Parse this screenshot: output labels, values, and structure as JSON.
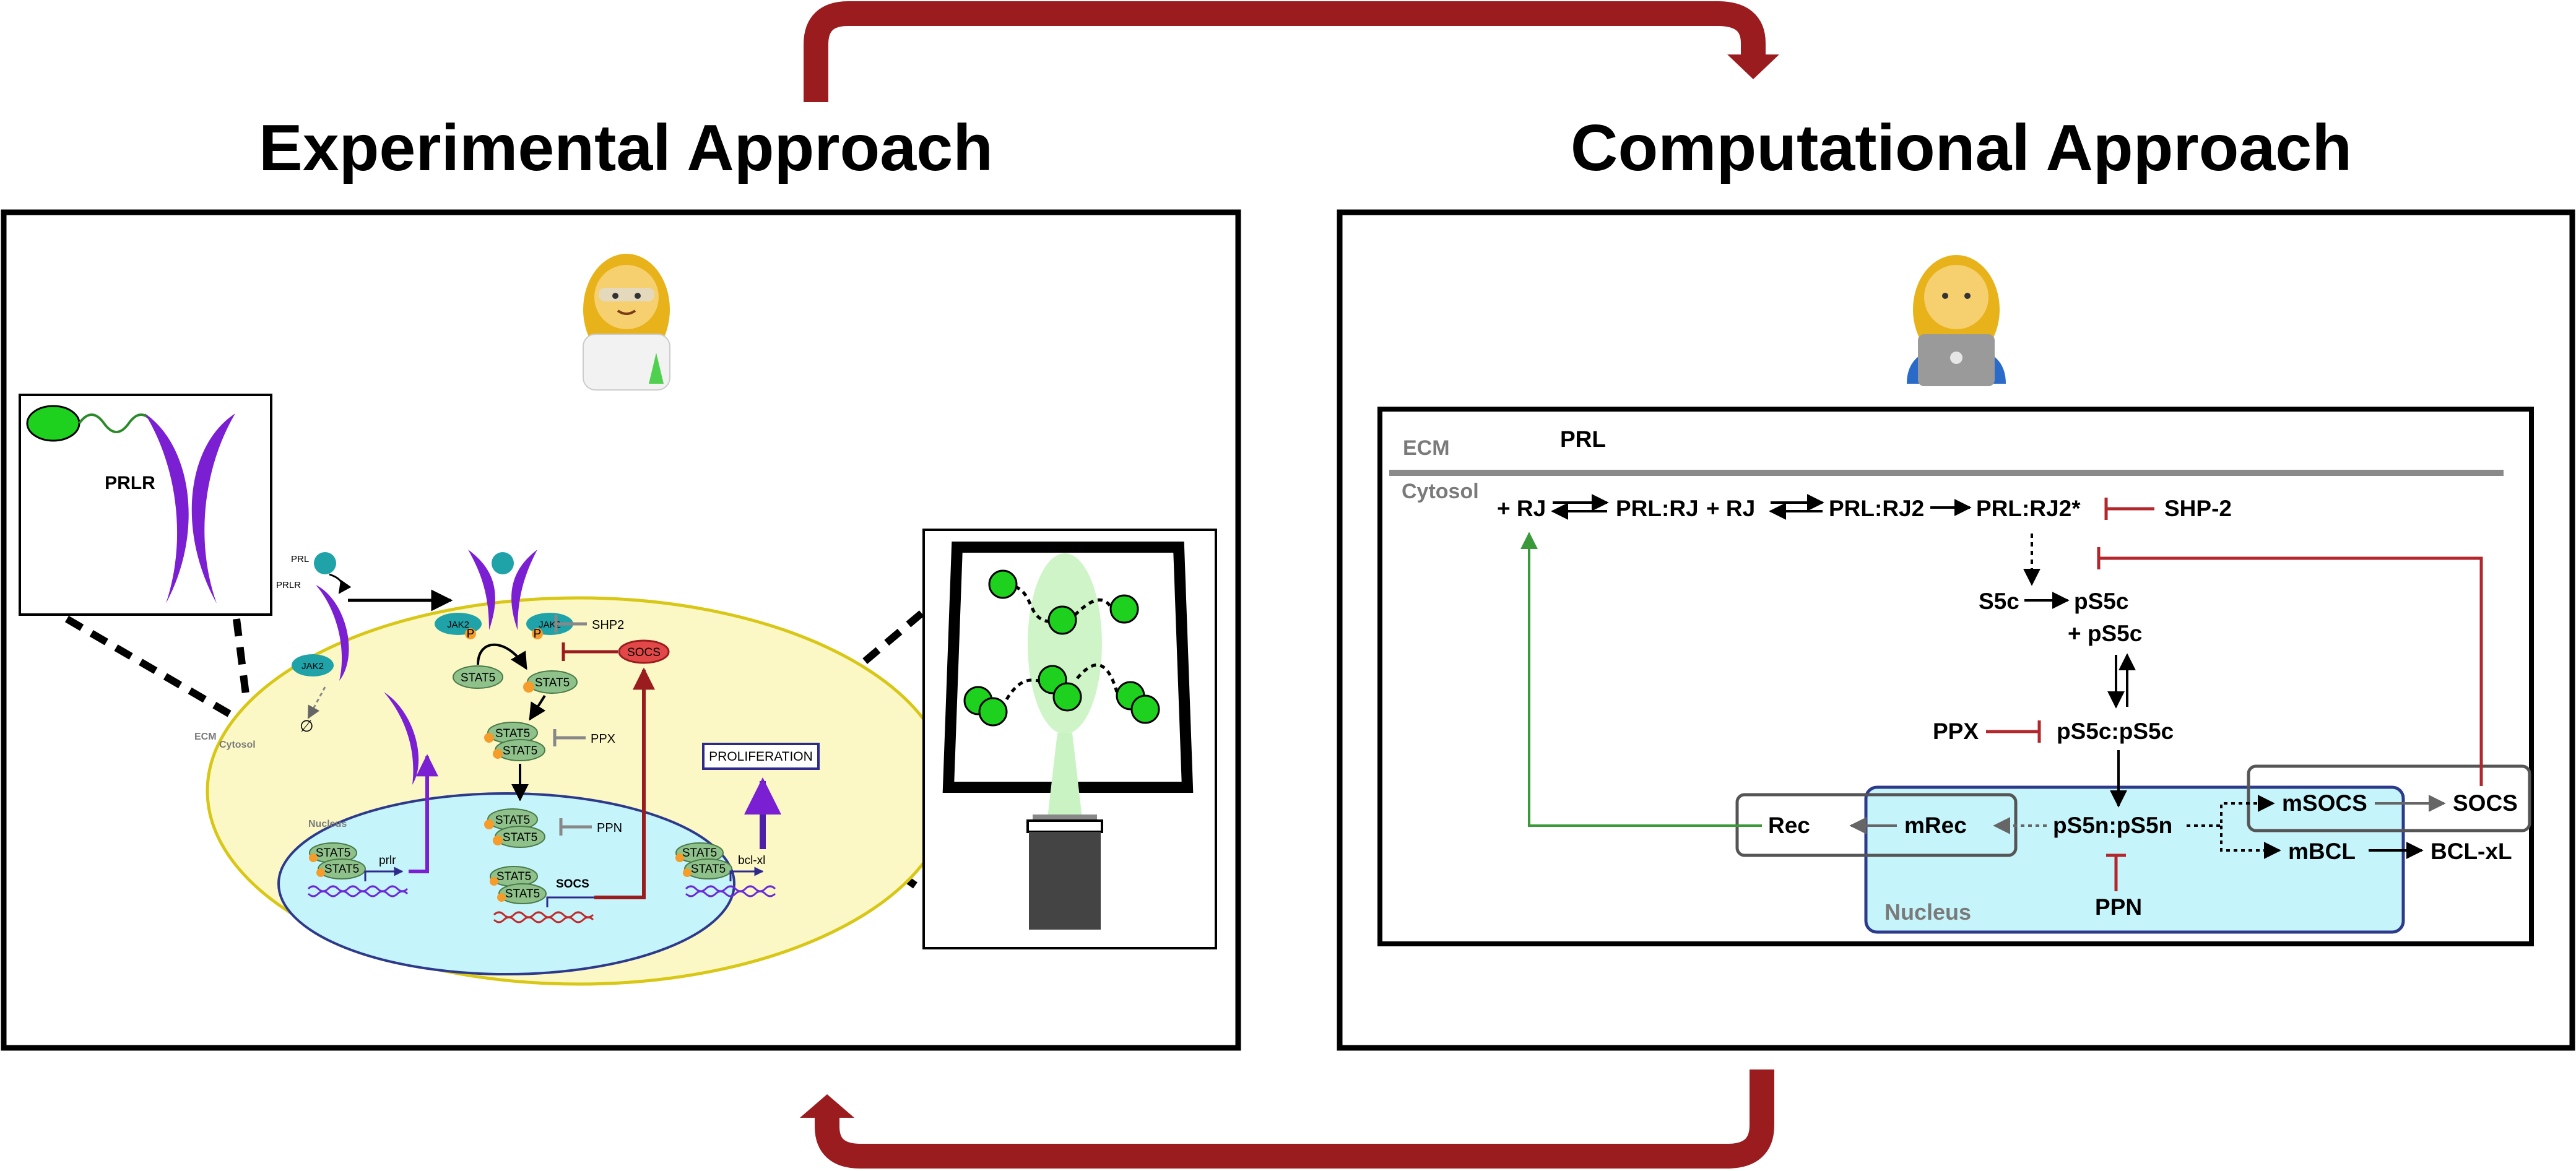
{
  "titles": {
    "experimental": "Experimental Approach",
    "computational": "Computational Approach"
  },
  "colors": {
    "feedback_arrow": "#9b1c1f",
    "inhibition": "#b3262b",
    "receptor": "#7a1fd1",
    "jak2": "#1fa3a8",
    "stat5": "#8fc18b",
    "cell": "#fbf8c6",
    "cell_border": "#d8c716",
    "nucleus": "#c6f4fb",
    "nucleus_border": "#2d3a8c",
    "socs": "#e34848",
    "green_ball": "#1ed11e",
    "rec_arrow": "#3a9a3a"
  },
  "experimental": {
    "prlr_inset_label": "PRLR",
    "prl_label": "PRL",
    "prlr_label": "PRLR",
    "jak2_label": "JAK2",
    "stat5_label": "STAT5",
    "p_label": "P",
    "shp2_label": "SHP2",
    "ppx_label": "PPX",
    "ppn_label": "PPN",
    "socs_label": "SOCS",
    "proliferation_label": "PROLIFERATION",
    "ecm_label": "ECM",
    "cytosol_label": "Cytosol",
    "nucleus_label": "Nucleus",
    "gene_prlr": "prlr",
    "gene_socs": "SOCS",
    "gene_bclxl": "bcl-xl",
    "degradation_symbol": "∅"
  },
  "computational": {
    "ecm_label": "ECM",
    "cytosol_label": "Cytosol",
    "nucleus_label": "Nucleus",
    "prl": "PRL",
    "rj1": "+ RJ",
    "prl_rj": "PRL:RJ",
    "rj2": "+ RJ",
    "prl_rj2": "PRL:RJ2",
    "prl_rj2_star": "PRL:RJ2*",
    "shp2": "SHP-2",
    "s5c": "S5c",
    "ps5c": "pS5c",
    "plus_ps5c": "+ pS5c",
    "ppx": "PPX",
    "ps5c_ps5c": "pS5c:pS5c",
    "ps5n_ps5n": "pS5n:pS5n",
    "ppn": "PPN",
    "rec": "Rec",
    "mrec": "mRec",
    "msocs": "mSOCS",
    "socs": "SOCS",
    "mbcl": "mBCL",
    "bcl_xl": "BCL-xL"
  }
}
